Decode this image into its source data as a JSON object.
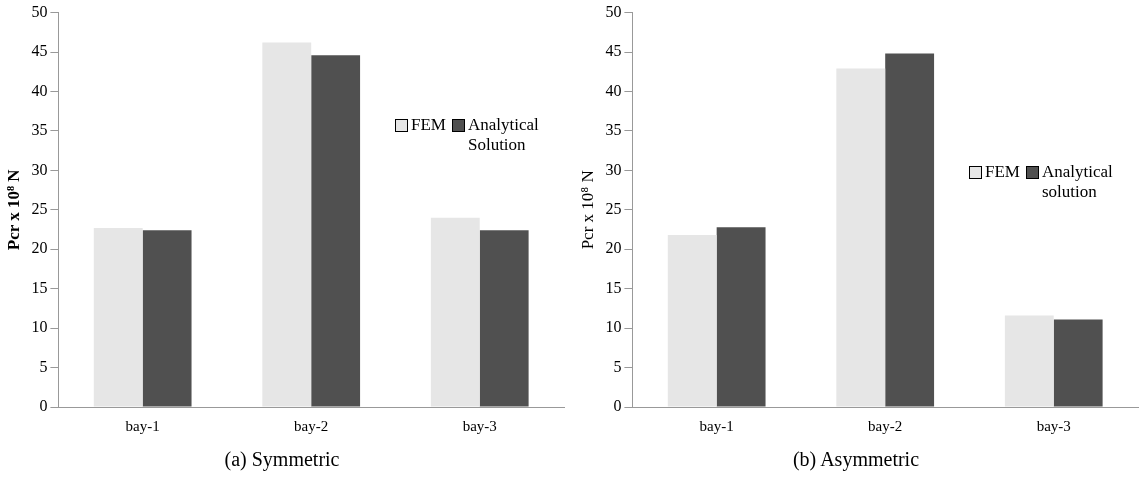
{
  "chart_data": [
    {
      "type": "bar",
      "title": "(a) Symmetric",
      "ylabel": "Pcr x 10⁸ N",
      "categories": [
        "bay-1",
        "bay-2",
        "bay-3"
      ],
      "series": [
        {
          "name": "FEM",
          "color": "#e6e6e6",
          "values": [
            22.7,
            46.2,
            24.0
          ]
        },
        {
          "name": "Analytical Solution",
          "color": "#505050",
          "values": [
            22.4,
            44.6,
            22.4
          ]
        }
      ],
      "ylim": [
        0,
        50
      ],
      "yticks": [
        0,
        5,
        10,
        15,
        20,
        25,
        30,
        35,
        40,
        45,
        50
      ],
      "grid": false,
      "legend": "right"
    },
    {
      "type": "bar",
      "title": "(b) Asymmetric",
      "ylabel": "Pcr x 10⁸ N",
      "categories": [
        "bay-1",
        "bay-2",
        "bay-3"
      ],
      "series": [
        {
          "name": "FEM",
          "color": "#e6e6e6",
          "values": [
            21.8,
            42.9,
            11.6
          ]
        },
        {
          "name": "Analytical solution",
          "color": "#505050",
          "values": [
            22.8,
            44.8,
            11.1
          ]
        }
      ],
      "ylim": [
        0,
        50
      ],
      "yticks": [
        0,
        5,
        10,
        15,
        20,
        25,
        30,
        35,
        40,
        45,
        50
      ],
      "grid": false,
      "legend": "right"
    }
  ]
}
